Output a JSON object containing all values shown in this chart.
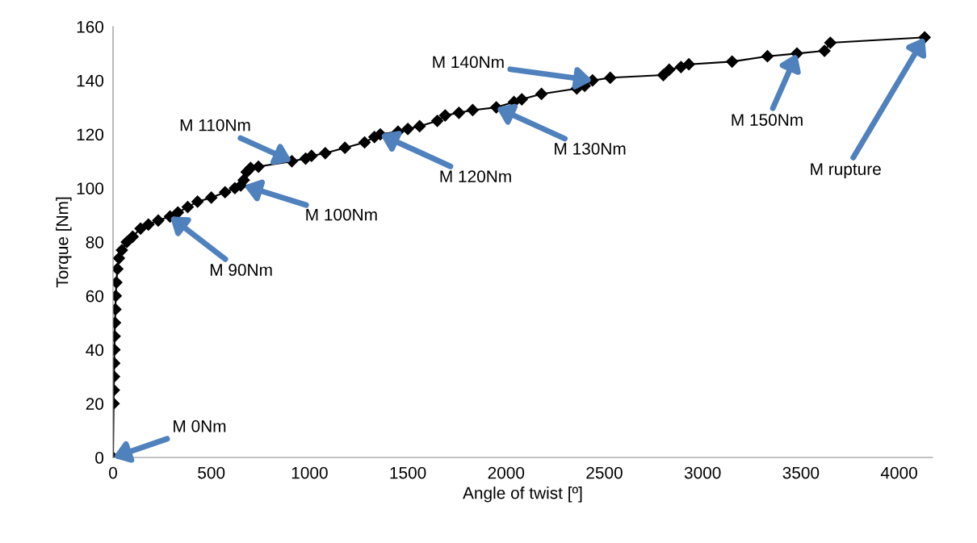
{
  "chart_data": {
    "type": "line",
    "xlabel": "Angle of twist [º]",
    "ylabel": "Torque [Nm]",
    "series": [
      {
        "color": "#000000",
        "x": [
          0,
          3,
          4,
          5,
          6,
          7,
          8,
          10,
          12,
          14,
          17,
          22,
          30,
          45,
          70,
          100,
          140,
          180,
          230,
          290,
          330,
          380,
          430,
          500,
          570,
          620,
          650,
          665,
          680,
          700,
          740,
          910,
          980,
          1010,
          1080,
          1180,
          1280,
          1330,
          1360,
          1450,
          1500,
          1560,
          1650,
          1690,
          1760,
          1830,
          1950,
          2040,
          2080,
          2180,
          2360,
          2400,
          2440,
          2530,
          2800,
          2830,
          2890,
          2930,
          3150,
          3330,
          3480,
          3620,
          3650,
          4130
        ],
        "values": [
          0,
          20,
          25,
          30,
          35,
          40,
          45,
          50,
          55,
          60,
          65,
          70,
          74,
          77,
          80,
          82,
          85,
          86.5,
          88,
          89.5,
          91,
          93,
          95,
          96.5,
          98.5,
          100,
          101,
          103,
          106,
          107.5,
          108,
          110,
          111,
          112,
          113,
          115,
          117,
          119,
          120,
          121,
          122,
          123,
          125,
          127,
          128,
          129,
          130,
          132,
          133,
          135,
          137,
          138,
          140,
          141,
          142,
          144,
          145,
          146,
          147,
          149,
          150,
          151,
          154,
          156
        ]
      }
    ],
    "marker": "diamond",
    "line_style": "solid",
    "grid": false,
    "legend": false,
    "xlim": [
      0,
      4170
    ],
    "xticks": [
      0,
      500,
      1000,
      1500,
      2000,
      2500,
      3000,
      3500,
      4000
    ],
    "ylim": [
      0,
      160
    ],
    "yticks": [
      0,
      20,
      40,
      60,
      80,
      100,
      120,
      140,
      160
    ],
    "annotations": [
      {
        "text": "M 0Nm",
        "x": 0,
        "y": 0
      },
      {
        "text": "M 90Nm",
        "x": 290,
        "y": 89.5
      },
      {
        "text": "M 100Nm",
        "x": 665,
        "y": 101
      },
      {
        "text": "M 110Nm",
        "x": 910,
        "y": 110
      },
      {
        "text": "M 120Nm",
        "x": 1360,
        "y": 120
      },
      {
        "text": "M 130Nm",
        "x": 1950,
        "y": 130
      },
      {
        "text": "M 140Nm",
        "x": 2440,
        "y": 140
      },
      {
        "text": "M 150Nm",
        "x": 3480,
        "y": 150
      },
      {
        "text": "M rupture",
        "x": 4130,
        "y": 156
      }
    ]
  }
}
